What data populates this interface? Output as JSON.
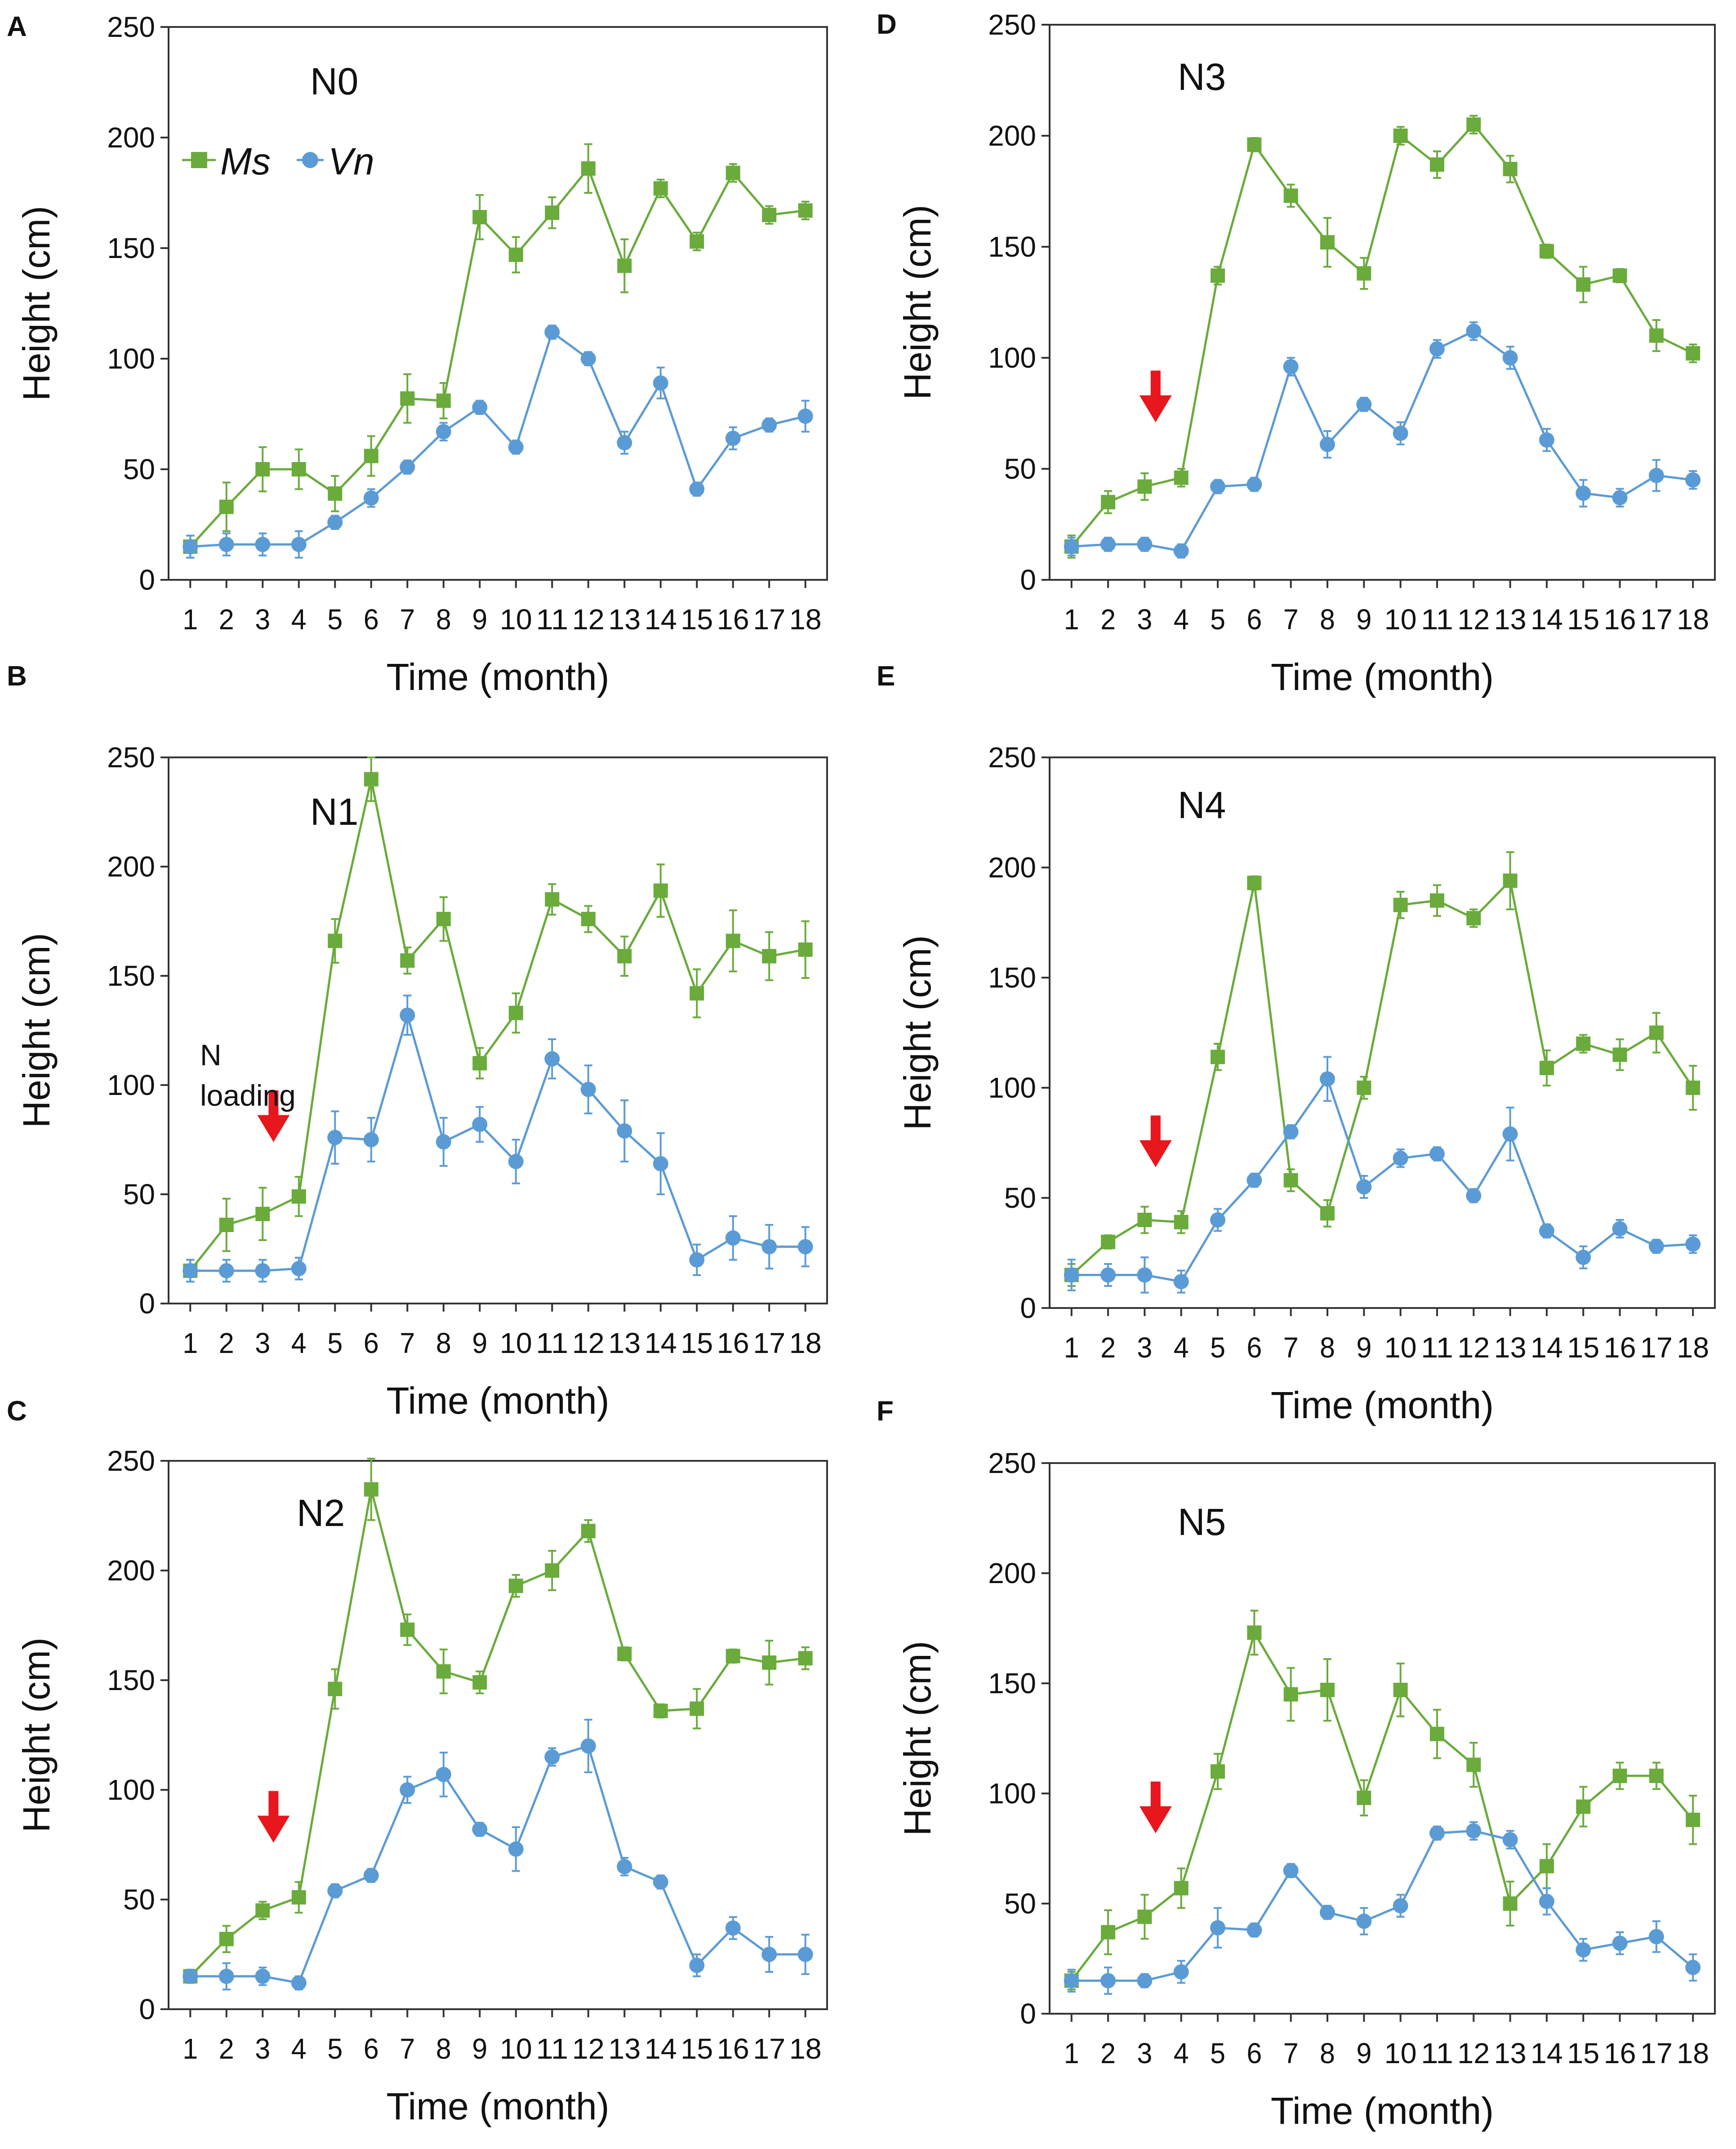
{
  "colors": {
    "ms": "#6aab3c",
    "vn": "#5b9bd5",
    "arrow": "#e8161d",
    "axis": "#333333",
    "text": "#111111"
  },
  "series_names": [
    "Ms",
    "Vn"
  ],
  "annotation_text": [
    "N",
    "loading"
  ],
  "chart_data": [
    {
      "type": "line",
      "panel": "A",
      "title": "N0",
      "xlabel": "Time (month)",
      "ylabel": "Height (cm)",
      "ylim": [
        0,
        250
      ],
      "x": [
        1,
        2,
        3,
        4,
        5,
        6,
        7,
        8,
        9,
        10,
        11,
        12,
        13,
        14,
        15,
        16,
        17,
        18
      ],
      "x_tick_labels": [
        "1",
        "2",
        "3",
        "4",
        "5",
        "6",
        "7",
        "8",
        "9",
        "10",
        "11",
        "12",
        "13",
        "14",
        "15",
        "16",
        "17",
        "18"
      ],
      "y_ticks": [
        0,
        50,
        100,
        150,
        200,
        250
      ],
      "legend": [
        "Ms",
        "Vn"
      ],
      "arrow_at": null,
      "series": [
        {
          "name": "Ms",
          "values": [
            15,
            33,
            50,
            50,
            39,
            56,
            82,
            81,
            164,
            147,
            166,
            186,
            142,
            177,
            153,
            184,
            165,
            167
          ],
          "errors": [
            5,
            11,
            10,
            9,
            8,
            9,
            11,
            8,
            10,
            8,
            7,
            11,
            12,
            4,
            4,
            4,
            4,
            4
          ]
        },
        {
          "name": "Vn",
          "values": [
            15,
            16,
            16,
            16,
            26,
            37,
            51,
            67,
            78,
            60,
            112,
            100,
            62,
            89,
            41,
            64,
            70,
            74
          ],
          "errors": [
            5,
            5,
            5,
            6,
            3,
            4,
            3,
            4,
            3,
            3,
            3,
            3,
            5,
            7,
            3,
            5,
            3,
            7
          ]
        }
      ]
    },
    {
      "type": "line",
      "panel": "D",
      "title": "N3",
      "xlabel": "Time (month)",
      "ylabel": "Height (cm)",
      "ylim": [
        0,
        250
      ],
      "x": [
        1,
        2,
        3,
        4,
        5,
        6,
        7,
        8,
        9,
        10,
        11,
        12,
        13,
        14,
        15,
        16,
        17,
        18
      ],
      "x_tick_labels": [
        "1",
        "2",
        "3",
        "4",
        "5",
        "6",
        "7",
        "8",
        "9",
        "10",
        "11",
        "12",
        "13",
        "14",
        "15",
        "16",
        "17",
        "18"
      ],
      "y_ticks": [
        0,
        50,
        100,
        150,
        200,
        250
      ],
      "arrow_at": 3.3,
      "series": [
        {
          "name": "Ms",
          "values": [
            15,
            35,
            42,
            46,
            137,
            196,
            173,
            152,
            138,
            200,
            187,
            205,
            185,
            148,
            133,
            137,
            110,
            102
          ],
          "errors": [
            5,
            5,
            6,
            4,
            4,
            3,
            5,
            11,
            7,
            4,
            6,
            4,
            6,
            3,
            8,
            3,
            7,
            4
          ]
        },
        {
          "name": "Vn",
          "values": [
            15,
            16,
            16,
            13,
            42,
            43,
            96,
            61,
            79,
            66,
            104,
            112,
            100,
            63,
            39,
            37,
            47,
            45
          ],
          "errors": [
            4,
            3,
            3,
            3,
            3,
            3,
            4,
            6,
            3,
            5,
            4,
            4,
            5,
            5,
            6,
            4,
            7,
            4
          ]
        }
      ]
    },
    {
      "type": "line",
      "panel": "B",
      "title": "N1",
      "xlabel": "Time (month)",
      "ylabel": "Height (cm)",
      "ylim": [
        0,
        250
      ],
      "x": [
        1,
        2,
        3,
        4,
        5,
        6,
        7,
        8,
        9,
        10,
        11,
        12,
        13,
        14,
        15,
        16,
        17,
        18
      ],
      "x_tick_labels": [
        "1",
        "2",
        "3",
        "4",
        "5",
        "6",
        "7",
        "8",
        "9",
        "10",
        "11",
        "12",
        "13",
        "14",
        "15",
        "16",
        "17",
        "18"
      ],
      "y_ticks": [
        0,
        50,
        100,
        150,
        200,
        250
      ],
      "arrow_at": 3.3,
      "series": [
        {
          "name": "Ms",
          "values": [
            15,
            36,
            41,
            49,
            166,
            240,
            157,
            176,
            110,
            133,
            185,
            176,
            159,
            189,
            142,
            166,
            159,
            162
          ],
          "errors": [
            5,
            12,
            12,
            9,
            10,
            10,
            6,
            10,
            7,
            9,
            7,
            6,
            9,
            12,
            11,
            14,
            11,
            13
          ]
        },
        {
          "name": "Vn",
          "values": [
            15,
            15,
            15,
            16,
            76,
            75,
            132,
            74,
            82,
            65,
            112,
            98,
            79,
            64,
            20,
            30,
            26,
            26
          ],
          "errors": [
            5,
            5,
            5,
            5,
            12,
            10,
            9,
            11,
            8,
            10,
            9,
            11,
            14,
            14,
            7,
            10,
            10,
            9
          ]
        }
      ]
    },
    {
      "type": "line",
      "panel": "E",
      "title": "N4",
      "xlabel": "Time (month)",
      "ylabel": "Height (cm)",
      "ylim": [
        0,
        250
      ],
      "x": [
        1,
        2,
        3,
        4,
        5,
        6,
        7,
        8,
        9,
        10,
        11,
        12,
        13,
        14,
        15,
        16,
        17,
        18
      ],
      "x_tick_labels": [
        "1",
        "2",
        "3",
        "4",
        "5",
        "6",
        "7",
        "8",
        "9",
        "10",
        "11",
        "12",
        "13",
        "14",
        "15",
        "16",
        "17",
        "18"
      ],
      "y_ticks": [
        0,
        50,
        100,
        150,
        200,
        250
      ],
      "arrow_at": 3.3,
      "series": [
        {
          "name": "Ms",
          "values": [
            15,
            30,
            40,
            39,
            114,
            193,
            58,
            43,
            100,
            183,
            185,
            177,
            194,
            109,
            120,
            115,
            125,
            100
          ],
          "errors": [
            5,
            3,
            6,
            5,
            6,
            3,
            5,
            6,
            5,
            6,
            7,
            4,
            13,
            8,
            4,
            7,
            9,
            10
          ]
        },
        {
          "name": "Vn",
          "values": [
            15,
            15,
            15,
            12,
            40,
            58,
            80,
            104,
            55,
            68,
            70,
            51,
            79,
            35,
            23,
            36,
            28,
            29
          ],
          "errors": [
            7,
            5,
            8,
            5,
            5,
            3,
            3,
            10,
            5,
            4,
            3,
            3,
            12,
            3,
            5,
            4,
            3,
            4
          ]
        }
      ]
    },
    {
      "type": "line",
      "panel": "C",
      "title": "N2",
      "xlabel": "Time (month)",
      "ylabel": "Height (cm)",
      "ylim": [
        0,
        250
      ],
      "x": [
        1,
        2,
        3,
        4,
        5,
        6,
        7,
        8,
        9,
        10,
        11,
        12,
        13,
        14,
        15,
        16,
        17,
        18
      ],
      "x_tick_labels": [
        "1",
        "2",
        "3",
        "4",
        "5",
        "6",
        "7",
        "8",
        "9",
        "10",
        "11",
        "12",
        "13",
        "14",
        "15",
        "16",
        "17",
        "18"
      ],
      "y_ticks": [
        0,
        50,
        100,
        150,
        200,
        250
      ],
      "arrow_at": 3.3,
      "series": [
        {
          "name": "Ms",
          "values": [
            15,
            32,
            45,
            51,
            146,
            237,
            173,
            154,
            149,
            193,
            200,
            218,
            162,
            136,
            137,
            161,
            158,
            160
          ],
          "errors": [
            3,
            6,
            4,
            7,
            9,
            14,
            7,
            10,
            5,
            5,
            9,
            5,
            3,
            3,
            9,
            3,
            10,
            5
          ]
        },
        {
          "name": "Vn",
          "values": [
            15,
            15,
            15,
            12,
            54,
            61,
            100,
            107,
            82,
            73,
            115,
            120,
            65,
            58,
            20,
            37,
            25,
            25
          ],
          "errors": [
            3,
            6,
            4,
            3,
            3,
            3,
            6,
            10,
            3,
            10,
            4,
            12,
            4,
            3,
            5,
            5,
            8,
            9
          ]
        }
      ]
    },
    {
      "type": "line",
      "panel": "F",
      "title": "N5",
      "xlabel": "Time (month)",
      "ylabel": "Height (cm)",
      "ylim": [
        0,
        250
      ],
      "x": [
        1,
        2,
        3,
        4,
        5,
        6,
        7,
        8,
        9,
        10,
        11,
        12,
        13,
        14,
        15,
        16,
        17,
        18
      ],
      "x_tick_labels": [
        "1",
        "2",
        "3",
        "4",
        "5",
        "6",
        "7",
        "8",
        "9",
        "10",
        "11",
        "12",
        "13",
        "14",
        "15",
        "16",
        "17",
        "18"
      ],
      "y_ticks": [
        0,
        50,
        100,
        150,
        200,
        250
      ],
      "arrow_at": 3.3,
      "series": [
        {
          "name": "Ms",
          "values": [
            15,
            37,
            44,
            57,
            110,
            173,
            145,
            147,
            98,
            147,
            127,
            113,
            50,
            67,
            94,
            108,
            108,
            88
          ],
          "errors": [
            4,
            10,
            10,
            9,
            8,
            10,
            12,
            14,
            8,
            12,
            11,
            10,
            10,
            10,
            9,
            6,
            6,
            11
          ]
        },
        {
          "name": "Vn",
          "values": [
            15,
            15,
            15,
            19,
            39,
            38,
            65,
            46,
            42,
            49,
            82,
            83,
            79,
            51,
            29,
            32,
            35,
            21
          ],
          "errors": [
            5,
            6,
            3,
            5,
            9,
            3,
            3,
            3,
            6,
            5,
            3,
            4,
            4,
            6,
            5,
            5,
            7,
            6
          ]
        }
      ]
    }
  ]
}
